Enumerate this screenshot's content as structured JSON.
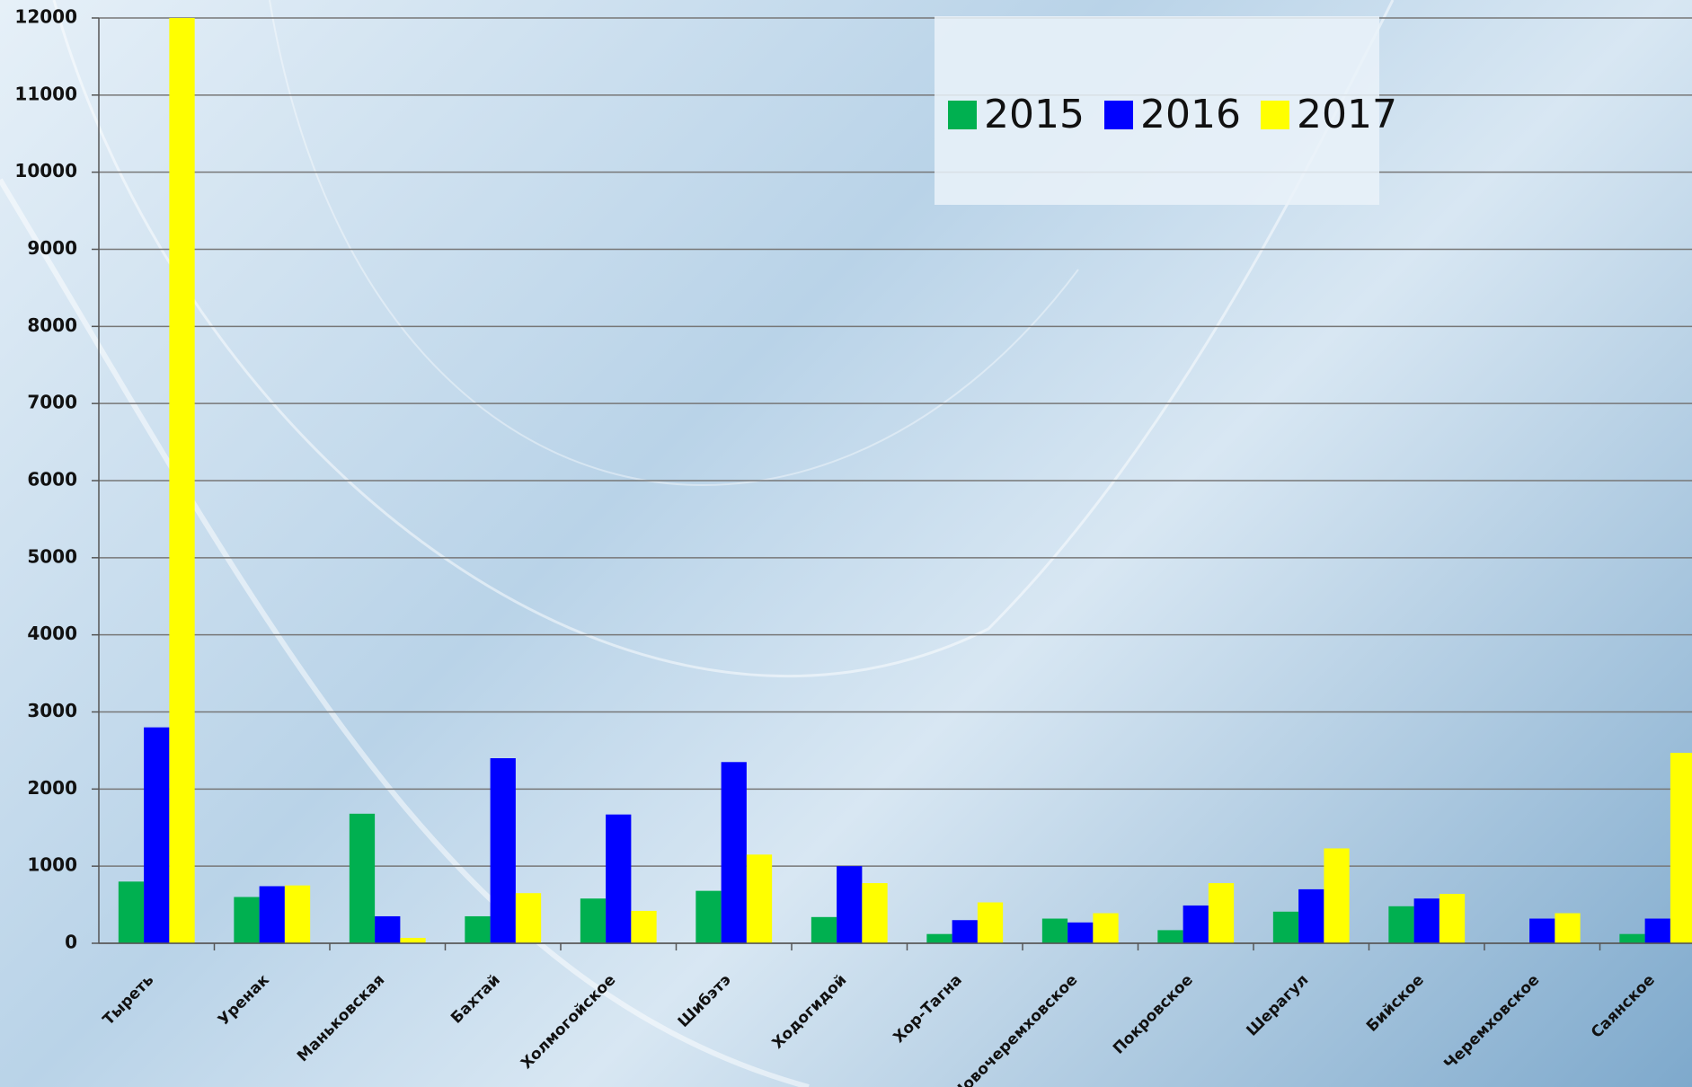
{
  "chart_data": {
    "type": "bar",
    "categories": [
      "Тыреть",
      "Уренак",
      "Маньковская",
      "Бахтай",
      "Холмогойское",
      "Шибэтэ",
      "Ходогидой",
      "Хор-Тагна",
      "Новочеремховское",
      "Покровское",
      "Шерагул",
      "Бийское",
      "Черемховское",
      "Саянское"
    ],
    "series": [
      {
        "name": "2015",
        "color": "#00b050",
        "values": [
          800,
          600,
          1680,
          350,
          580,
          680,
          340,
          120,
          320,
          170,
          410,
          480,
          null,
          120
        ]
      },
      {
        "name": "2016",
        "color": "#0000ff",
        "values": [
          2800,
          740,
          350,
          2400,
          1670,
          2350,
          1000,
          300,
          270,
          490,
          700,
          580,
          320,
          320
        ]
      },
      {
        "name": "2017",
        "color": "#ffff00",
        "values": [
          12000,
          750,
          70,
          650,
          420,
          1150,
          780,
          530,
          390,
          780,
          1230,
          640,
          390,
          2470
        ]
      }
    ],
    "ylim": [
      0,
      12000
    ],
    "yticks": [
      0,
      1000,
      2000,
      3000,
      4000,
      5000,
      6000,
      7000,
      8000,
      9000,
      10000,
      11000,
      12000
    ],
    "grid": true,
    "legend": "top-right"
  }
}
